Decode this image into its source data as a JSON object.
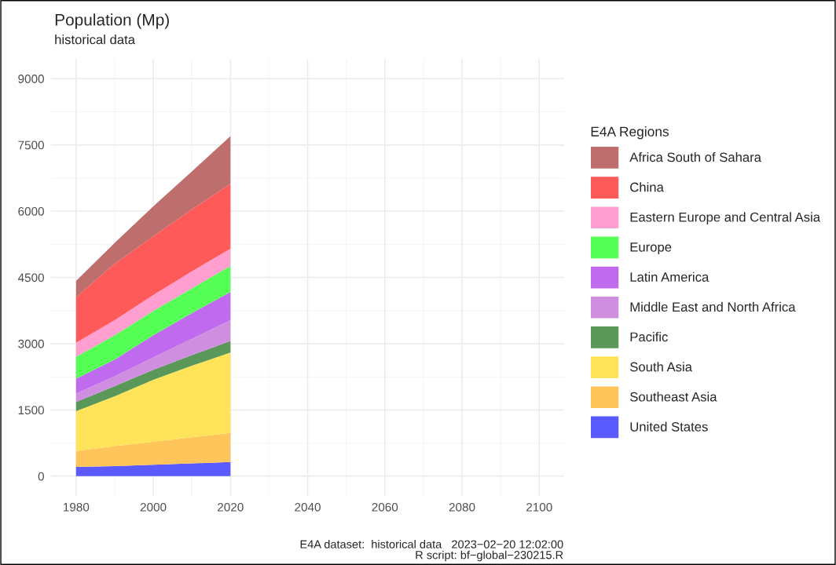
{
  "chart_data": {
    "type": "area",
    "stacked": true,
    "title": "Population (Mp)",
    "subtitle": "historical data",
    "legend_title": "E4A Regions",
    "legend": "right",
    "grid": true,
    "x": [
      1980,
      1990,
      2000,
      2010,
      2020
    ],
    "xlim": [
      1973.5,
      2106.5
    ],
    "xticks": [
      1980,
      2000,
      2020,
      2040,
      2060,
      2080,
      2100
    ],
    "ylim": [
      -450,
      9450
    ],
    "yticks": [
      0,
      1500,
      3000,
      4500,
      6000,
      7500,
      9000
    ],
    "series": [
      {
        "name": "United States",
        "color": "#5a5aff",
        "values": [
          210,
          230,
          260,
          290,
          320
        ]
      },
      {
        "name": "Southeast Asia",
        "color": "#ffc45a",
        "values": [
          360,
          450,
          520,
          590,
          660
        ]
      },
      {
        "name": "South Asia",
        "color": "#ffe45a",
        "values": [
          900,
          1130,
          1400,
          1620,
          1820
        ]
      },
      {
        "name": "Pacific",
        "color": "#5a985a",
        "values": [
          210,
          230,
          230,
          240,
          260
        ]
      },
      {
        "name": "Middle East and North Africa",
        "color": "#d08ee0",
        "values": [
          190,
          220,
          280,
          370,
          470
        ]
      },
      {
        "name": "Latin America",
        "color": "#c06af0",
        "values": [
          340,
          380,
          500,
          580,
          640
        ]
      },
      {
        "name": "Europe",
        "color": "#55ff55",
        "values": [
          490,
          550,
          550,
          560,
          590
        ]
      },
      {
        "name": "Eastern Europe and Central Asia",
        "color": "#ff9ecf",
        "values": [
          320,
          340,
          360,
          390,
          390
        ]
      },
      {
        "name": "China",
        "color": "#ff5a5a",
        "values": [
          1030,
          1280,
          1330,
          1400,
          1470
        ]
      },
      {
        "name": "Africa South of Sahara",
        "color": "#bf6e6e",
        "values": [
          370,
          470,
          680,
          860,
          1080
        ]
      }
    ],
    "annotations": [
      "E4A dataset:  historical data   2023−02−20 12:02:00",
      "R script: bf−global−230215.R"
    ]
  }
}
